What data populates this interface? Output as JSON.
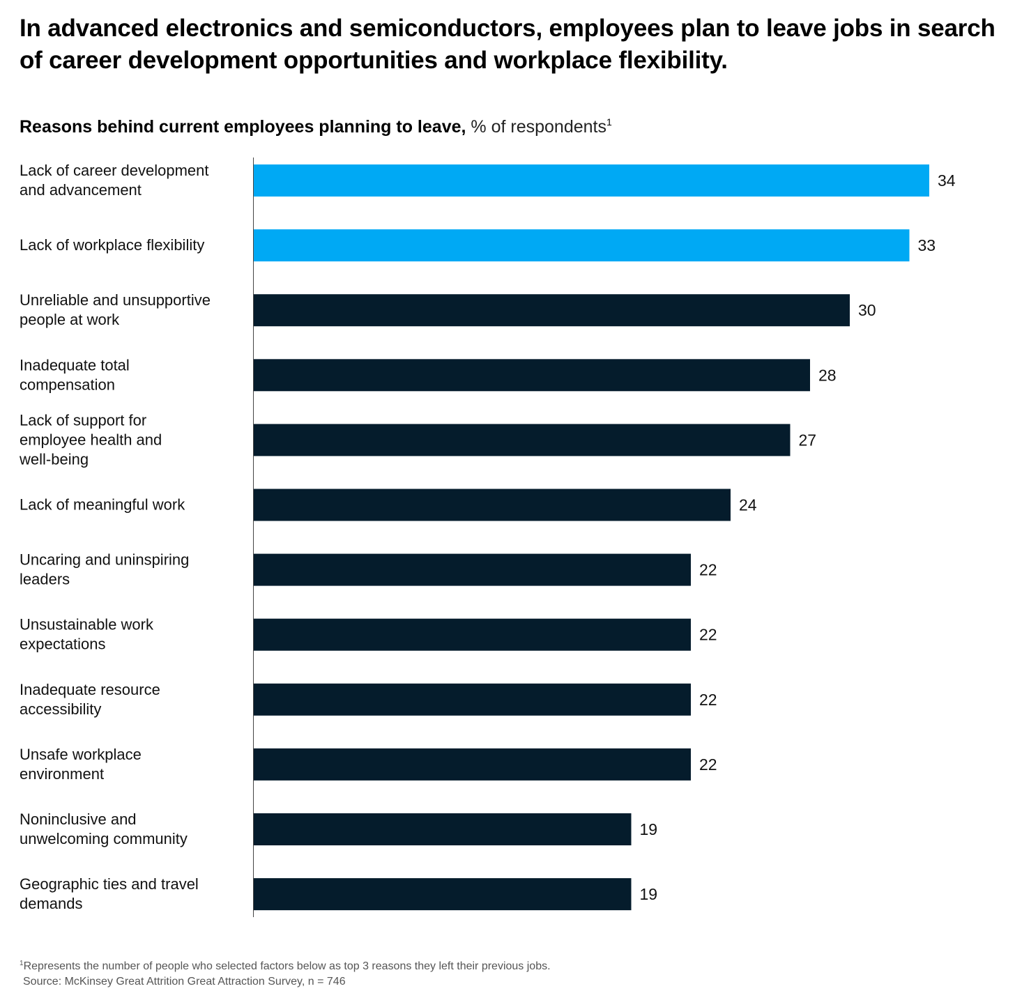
{
  "title": "In advanced electronics and semiconductors, employees plan to leave jobs in search of career development opportunities and workplace flexibility.",
  "subtitle_bold": "Reasons behind current employees planning to leave,",
  "subtitle_normal": "% of respondents",
  "subtitle_footnote_mark": "1",
  "footnote_mark": "1",
  "footnote_text": "Represents the number of people who selected factors below as top 3 reasons they left their previous jobs.",
  "source": "Source: McKinsey Great Attrition Great Attraction Survey, n = 746",
  "colors": {
    "highlight": "#00A9F4",
    "default": "#051C2C",
    "axis": "#444444"
  },
  "chart_data": {
    "type": "bar",
    "orientation": "horizontal",
    "title": "Reasons behind current employees planning to leave, % of respondents",
    "xlabel": "",
    "ylabel": "",
    "xlim": [
      0,
      34
    ],
    "grid": false,
    "categories": [
      [
        "Lack of career development",
        "and advancement"
      ],
      [
        "Lack of workplace flexibility"
      ],
      [
        "Unreliable and unsupportive",
        "people at work"
      ],
      [
        "Inadequate total",
        "compensation"
      ],
      [
        "Lack of support for",
        "employee health and",
        "well-being"
      ],
      [
        "Lack of meaningful work"
      ],
      [
        "Uncaring and uninspiring",
        "leaders"
      ],
      [
        "Unsustainable work",
        "expectations"
      ],
      [
        "Inadequate resource",
        "accessibility"
      ],
      [
        "Unsafe workplace",
        "environment"
      ],
      [
        "Noninclusive and",
        "unwelcoming community"
      ],
      [
        "Geographic ties and travel",
        "demands"
      ]
    ],
    "values": [
      34,
      33,
      30,
      28,
      27,
      24,
      22,
      22,
      22,
      22,
      19,
      19
    ],
    "highlighted": [
      true,
      true,
      false,
      false,
      false,
      false,
      false,
      false,
      false,
      false,
      false,
      false
    ]
  }
}
